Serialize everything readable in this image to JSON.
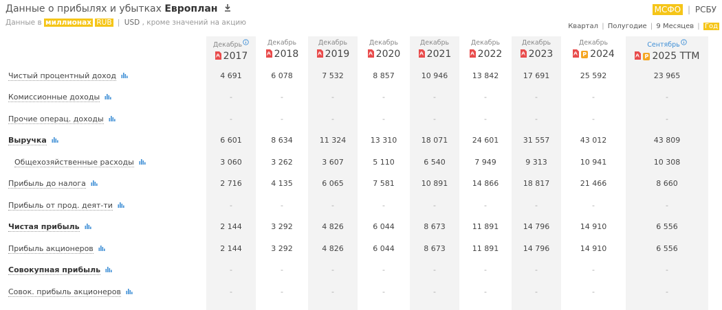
{
  "header": {
    "title_prefix": "Данные о прибылях и убытках",
    "company": "Европлан",
    "sub_prefix": "Данные в",
    "sub_units": "миллионах",
    "currency_rub": "RUB",
    "sub_sep": "|",
    "currency_usd": "USD",
    "sub_suffix": ", кроме значений на акцию"
  },
  "standard_switch": {
    "ifrs": "МСФО",
    "sep": "|",
    "ras": "РСБУ"
  },
  "period_switch": {
    "quarter": "Квартал",
    "half": "Полугодие",
    "nine": "9 Месяцев",
    "year": "Год",
    "sep": "|"
  },
  "columns": [
    {
      "month": "Декабрь",
      "year": "2017",
      "info": true
    },
    {
      "month": "Декабрь",
      "year": "2018"
    },
    {
      "month": "Декабрь",
      "year": "2019"
    },
    {
      "month": "Декабрь",
      "year": "2020"
    },
    {
      "month": "Декабрь",
      "year": "2021"
    },
    {
      "month": "Декабрь",
      "year": "2022"
    },
    {
      "month": "Декабрь",
      "year": "2023"
    },
    {
      "month": "Декабрь",
      "year": "2024",
      "badge": "P"
    },
    {
      "month": "Сентябрь",
      "year": "2025 TTM",
      "badge": "P",
      "info": true
    }
  ],
  "rows": [
    {
      "label": "Чистый процентный доход",
      "values": [
        "4 691",
        "6 078",
        "7 532",
        "8 857",
        "10 946",
        "13 842",
        "17 691",
        "25 592",
        "23 965"
      ]
    },
    {
      "label": "Комиссионные доходы",
      "values": [
        "-",
        "-",
        "-",
        "-",
        "-",
        "-",
        "-",
        "-",
        "-"
      ]
    },
    {
      "label": "Прочие операц. доходы",
      "values": [
        "-",
        "-",
        "-",
        "-",
        "-",
        "-",
        "-",
        "-",
        "-"
      ]
    },
    {
      "label": "Выручка",
      "bold": true,
      "values": [
        "6 601",
        "8 634",
        "11 324",
        "13 310",
        "18 071",
        "24 601",
        "31 557",
        "43 012",
        "43 809"
      ]
    },
    {
      "label": "Общехозяйственные расходы",
      "indent": true,
      "values": [
        "3 060",
        "3 262",
        "3 607",
        "5 110",
        "6 540",
        "7 949",
        "9 313",
        "10 941",
        "10 308"
      ]
    },
    {
      "label": "Прибыль до налога",
      "values": [
        "2 716",
        "4 135",
        "6 065",
        "7 581",
        "10 891",
        "14 866",
        "18 817",
        "21 466",
        "8 660"
      ]
    },
    {
      "label": "Прибыль от прод. деят-ти",
      "values": [
        "-",
        "-",
        "-",
        "-",
        "-",
        "-",
        "-",
        "-",
        "-"
      ]
    },
    {
      "label": "Чистая прибыль",
      "bold": true,
      "values": [
        "2 144",
        "3 292",
        "4 826",
        "6 044",
        "8 673",
        "11 891",
        "14 796",
        "14 910",
        "6 556"
      ]
    },
    {
      "label": "Прибыль акционеров",
      "values": [
        "2 144",
        "3 292",
        "4 826",
        "6 044",
        "8 673",
        "11 891",
        "14 796",
        "14 910",
        "6 556"
      ]
    },
    {
      "label": "Совокупная прибыль",
      "bold": true,
      "values": [
        "-",
        "-",
        "-",
        "-",
        "-",
        "-",
        "-",
        "-",
        "-"
      ]
    },
    {
      "label": "Совок. прибыль акционеров",
      "values": [
        "-",
        "-",
        "-",
        "-",
        "-",
        "-",
        "-",
        "-",
        "-"
      ]
    }
  ]
}
